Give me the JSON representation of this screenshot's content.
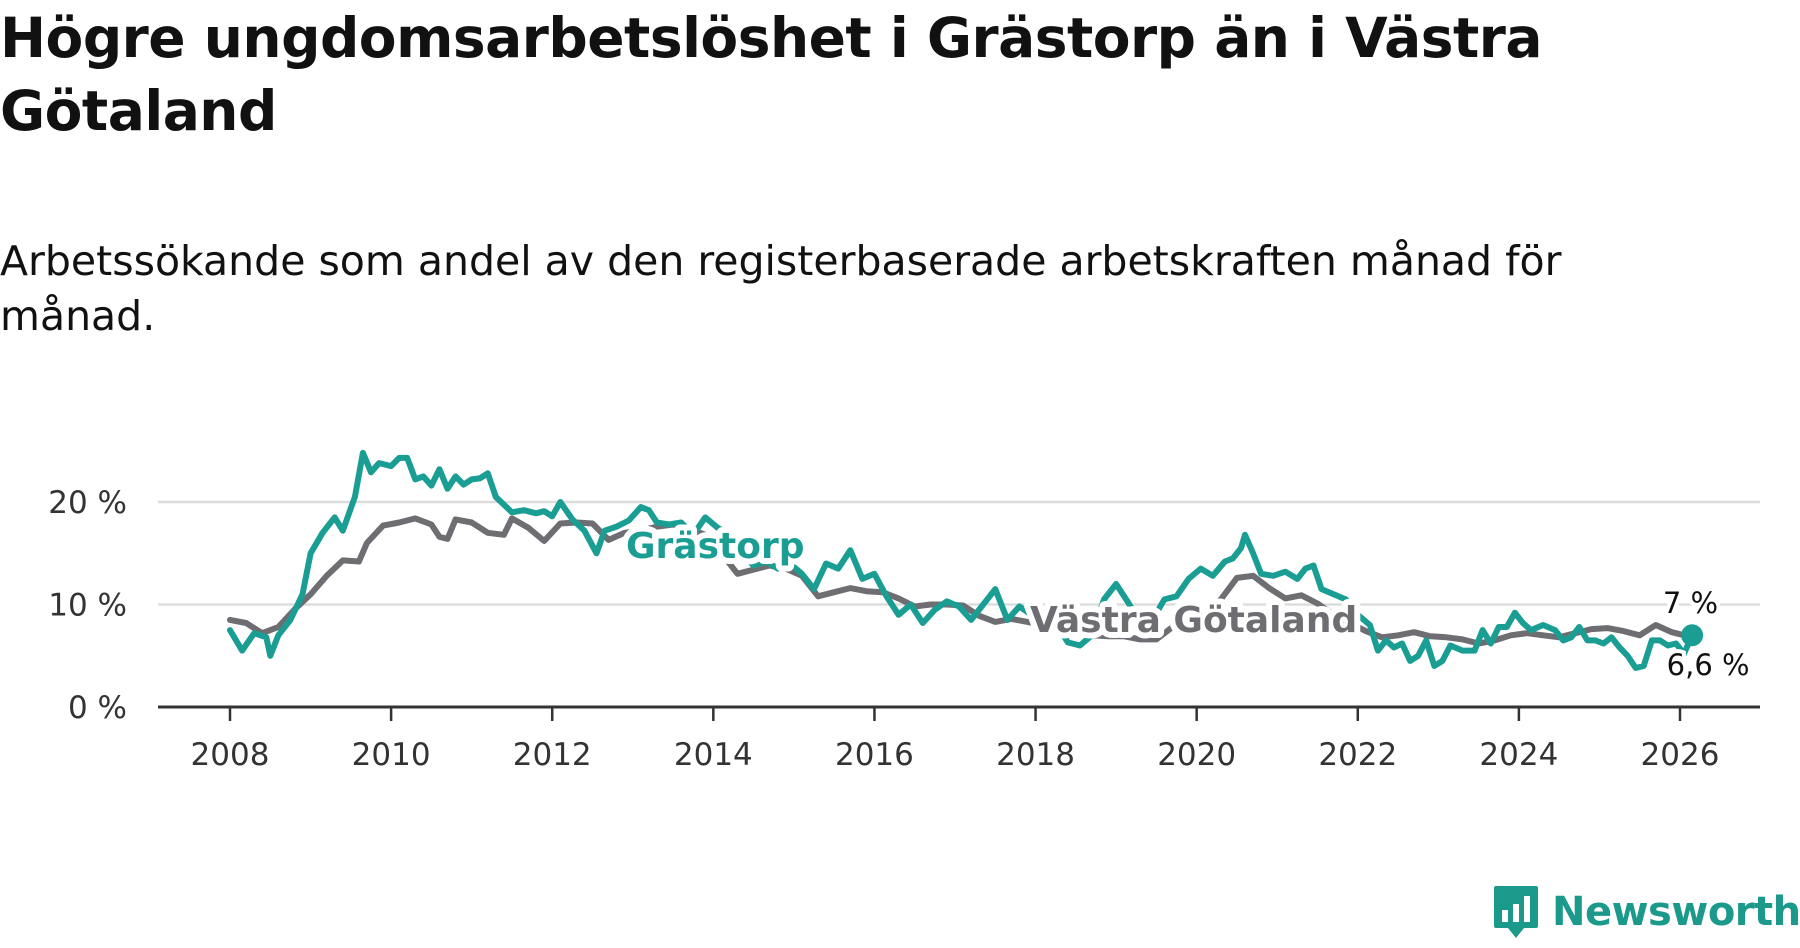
{
  "header": {
    "title": "Högre ungdomsarbetslöshet i Grästorp än i Västra Götaland",
    "subtitle": "Arbetssökande som andel av den registerbaserade arbetskraften månad för månad."
  },
  "brand": {
    "name": "Newsworthy",
    "icon": "newsworthy-logo-icon"
  },
  "colors": {
    "grastorp": "#1a9e94",
    "vastra_gotaland": "#6e6d72",
    "grid": "#dddddd",
    "axis": "#333333",
    "brand": "#1b9a8c"
  },
  "chart_data": {
    "type": "line",
    "title": "Högre ungdomsarbetslöshet i Grästorp än i Västra Götaland",
    "subtitle": "Arbetssökande som andel av den registerbaserade arbetskraften månad för månad.",
    "xlabel": "",
    "ylabel": "",
    "xlim": [
      2007.6,
      2026.8
    ],
    "ylim": [
      0,
      20
    ],
    "grid": true,
    "y_ticks": [
      0,
      10,
      20
    ],
    "y_tick_labels": [
      "0 %",
      "10 %",
      "20 %"
    ],
    "x_ticks": [
      2008,
      2010,
      2012,
      2014,
      2016,
      2018,
      2020,
      2022,
      2024,
      2026
    ],
    "x_tick_labels": [
      "2008",
      "2010",
      "2012",
      "2014",
      "2016",
      "2018",
      "2020",
      "2022",
      "2024",
      "2026"
    ],
    "series": [
      {
        "name": "Västra Götaland",
        "label": "Västra Götaland",
        "end_label": "6,6 %",
        "points": [
          [
            2008.0,
            8.5
          ],
          [
            2008.2,
            8.2
          ],
          [
            2008.4,
            7.2
          ],
          [
            2008.6,
            7.8
          ],
          [
            2008.8,
            9.5
          ],
          [
            2009.0,
            11.0
          ],
          [
            2009.2,
            12.8
          ],
          [
            2009.4,
            14.3
          ],
          [
            2009.6,
            14.2
          ],
          [
            2009.7,
            16.0
          ],
          [
            2009.9,
            17.7
          ],
          [
            2010.1,
            18.0
          ],
          [
            2010.3,
            18.4
          ],
          [
            2010.5,
            17.8
          ],
          [
            2010.6,
            16.6
          ],
          [
            2010.7,
            16.4
          ],
          [
            2010.8,
            18.3
          ],
          [
            2011.0,
            18.0
          ],
          [
            2011.2,
            17.0
          ],
          [
            2011.4,
            16.8
          ],
          [
            2011.5,
            18.4
          ],
          [
            2011.7,
            17.5
          ],
          [
            2011.9,
            16.2
          ],
          [
            2012.1,
            17.9
          ],
          [
            2012.3,
            18.0
          ],
          [
            2012.5,
            17.9
          ],
          [
            2012.7,
            16.3
          ],
          [
            2012.9,
            17.0
          ],
          [
            2013.1,
            17.2
          ],
          [
            2013.3,
            17.6
          ],
          [
            2013.5,
            17.8
          ],
          [
            2013.7,
            17.4
          ],
          [
            2013.9,
            16.8
          ],
          [
            2014.1,
            15.0
          ],
          [
            2014.3,
            13.0
          ],
          [
            2014.5,
            13.4
          ],
          [
            2014.7,
            13.8
          ],
          [
            2014.9,
            13.5
          ],
          [
            2015.1,
            12.8
          ],
          [
            2015.3,
            10.8
          ],
          [
            2015.5,
            11.2
          ],
          [
            2015.7,
            11.6
          ],
          [
            2015.9,
            11.3
          ],
          [
            2016.1,
            11.2
          ],
          [
            2016.3,
            10.6
          ],
          [
            2016.5,
            9.8
          ],
          [
            2016.7,
            10.0
          ],
          [
            2016.9,
            10.0
          ],
          [
            2017.1,
            9.9
          ],
          [
            2017.3,
            8.9
          ],
          [
            2017.5,
            8.3
          ],
          [
            2017.7,
            8.6
          ],
          [
            2017.9,
            8.3
          ],
          [
            2018.1,
            8.0
          ],
          [
            2018.3,
            7.6
          ],
          [
            2018.5,
            7.3
          ],
          [
            2018.7,
            7.0
          ],
          [
            2018.9,
            6.9
          ],
          [
            2019.1,
            6.9
          ],
          [
            2019.3,
            6.6
          ],
          [
            2019.5,
            6.6
          ],
          [
            2019.7,
            7.8
          ],
          [
            2019.9,
            8.6
          ],
          [
            2020.1,
            9.2
          ],
          [
            2020.3,
            10.5
          ],
          [
            2020.5,
            12.6
          ],
          [
            2020.7,
            12.8
          ],
          [
            2020.9,
            11.6
          ],
          [
            2021.1,
            10.6
          ],
          [
            2021.3,
            10.9
          ],
          [
            2021.5,
            10.1
          ],
          [
            2021.7,
            9.0
          ],
          [
            2021.9,
            8.2
          ],
          [
            2022.1,
            7.4
          ],
          [
            2022.3,
            6.8
          ],
          [
            2022.5,
            7.0
          ],
          [
            2022.7,
            7.3
          ],
          [
            2022.9,
            6.9
          ],
          [
            2023.1,
            6.8
          ],
          [
            2023.3,
            6.6
          ],
          [
            2023.5,
            6.2
          ],
          [
            2023.7,
            6.5
          ],
          [
            2023.9,
            7.0
          ],
          [
            2024.1,
            7.2
          ],
          [
            2024.3,
            7.0
          ],
          [
            2024.5,
            6.8
          ],
          [
            2024.7,
            7.2
          ],
          [
            2024.9,
            7.6
          ],
          [
            2025.1,
            7.7
          ],
          [
            2025.3,
            7.4
          ],
          [
            2025.5,
            7.0
          ],
          [
            2025.7,
            8.0
          ],
          [
            2025.9,
            7.3
          ],
          [
            2026.1,
            6.9
          ],
          [
            2026.2,
            6.6
          ]
        ]
      },
      {
        "name": "Grästorp",
        "label": "Grästorp",
        "end_label": "7 %",
        "points": [
          [
            2008.0,
            7.5
          ],
          [
            2008.15,
            5.5
          ],
          [
            2008.3,
            7.2
          ],
          [
            2008.45,
            6.8
          ],
          [
            2008.5,
            5.0
          ],
          [
            2008.6,
            7.0
          ],
          [
            2008.75,
            8.5
          ],
          [
            2008.9,
            11.0
          ],
          [
            2009.0,
            15.0
          ],
          [
            2009.15,
            17.0
          ],
          [
            2009.3,
            18.5
          ],
          [
            2009.4,
            17.2
          ],
          [
            2009.55,
            20.5
          ],
          [
            2009.65,
            24.8
          ],
          [
            2009.75,
            22.9
          ],
          [
            2009.85,
            23.8
          ],
          [
            2010.0,
            23.5
          ],
          [
            2010.1,
            24.3
          ],
          [
            2010.2,
            24.3
          ],
          [
            2010.3,
            22.2
          ],
          [
            2010.4,
            22.5
          ],
          [
            2010.5,
            21.6
          ],
          [
            2010.6,
            23.2
          ],
          [
            2010.7,
            21.3
          ],
          [
            2010.8,
            22.5
          ],
          [
            2010.9,
            21.7
          ],
          [
            2011.0,
            22.2
          ],
          [
            2011.1,
            22.3
          ],
          [
            2011.2,
            22.8
          ],
          [
            2011.3,
            20.5
          ],
          [
            2011.5,
            19.0
          ],
          [
            2011.65,
            19.2
          ],
          [
            2011.8,
            18.9
          ],
          [
            2011.9,
            19.1
          ],
          [
            2012.0,
            18.6
          ],
          [
            2012.1,
            20.0
          ],
          [
            2012.25,
            18.3
          ],
          [
            2012.4,
            17.2
          ],
          [
            2012.55,
            15.0
          ],
          [
            2012.65,
            17.2
          ],
          [
            2012.8,
            17.6
          ],
          [
            2012.95,
            18.2
          ],
          [
            2013.1,
            19.5
          ],
          [
            2013.2,
            19.2
          ],
          [
            2013.3,
            18.0
          ],
          [
            2013.45,
            17.8
          ],
          [
            2013.6,
            18.0
          ],
          [
            2013.75,
            16.8
          ],
          [
            2013.9,
            18.5
          ],
          [
            2014.05,
            17.5
          ],
          [
            2014.2,
            16.8
          ],
          [
            2014.35,
            15.0
          ],
          [
            2014.5,
            13.8
          ],
          [
            2014.65,
            14.2
          ],
          [
            2014.8,
            13.5
          ],
          [
            2014.95,
            14.0
          ],
          [
            2015.1,
            13.0
          ],
          [
            2015.25,
            11.5
          ],
          [
            2015.4,
            14.0
          ],
          [
            2015.55,
            13.5
          ],
          [
            2015.7,
            15.3
          ],
          [
            2015.85,
            12.5
          ],
          [
            2016.0,
            13.0
          ],
          [
            2016.15,
            10.8
          ],
          [
            2016.3,
            9.0
          ],
          [
            2016.45,
            10.0
          ],
          [
            2016.6,
            8.2
          ],
          [
            2016.75,
            9.5
          ],
          [
            2016.9,
            10.3
          ],
          [
            2017.05,
            9.8
          ],
          [
            2017.2,
            8.5
          ],
          [
            2017.35,
            10.0
          ],
          [
            2017.5,
            11.5
          ],
          [
            2017.65,
            8.5
          ],
          [
            2017.8,
            9.8
          ],
          [
            2017.95,
            9.0
          ],
          [
            2018.1,
            7.5
          ],
          [
            2018.25,
            8.2
          ],
          [
            2018.4,
            6.3
          ],
          [
            2018.55,
            6.0
          ],
          [
            2018.7,
            7.0
          ],
          [
            2018.85,
            10.5
          ],
          [
            2019.0,
            12.0
          ],
          [
            2019.15,
            10.2
          ],
          [
            2019.3,
            8.2
          ],
          [
            2019.45,
            8.5
          ],
          [
            2019.6,
            10.5
          ],
          [
            2019.75,
            10.8
          ],
          [
            2019.9,
            12.5
          ],
          [
            2020.05,
            13.5
          ],
          [
            2020.2,
            12.8
          ],
          [
            2020.35,
            14.2
          ],
          [
            2020.45,
            14.5
          ],
          [
            2020.55,
            15.5
          ],
          [
            2020.6,
            16.8
          ],
          [
            2020.7,
            15.0
          ],
          [
            2020.8,
            13.0
          ],
          [
            2020.95,
            12.8
          ],
          [
            2021.1,
            13.2
          ],
          [
            2021.25,
            12.5
          ],
          [
            2021.35,
            13.5
          ],
          [
            2021.45,
            13.8
          ],
          [
            2021.55,
            11.5
          ],
          [
            2021.7,
            11.0
          ],
          [
            2021.85,
            10.5
          ],
          [
            2022.0,
            9.0
          ],
          [
            2022.15,
            8.0
          ],
          [
            2022.25,
            5.5
          ],
          [
            2022.35,
            6.5
          ],
          [
            2022.45,
            5.8
          ],
          [
            2022.55,
            6.2
          ],
          [
            2022.65,
            4.5
          ],
          [
            2022.75,
            5.0
          ],
          [
            2022.85,
            6.5
          ],
          [
            2022.95,
            4.0
          ],
          [
            2023.05,
            4.5
          ],
          [
            2023.15,
            6.0
          ],
          [
            2023.3,
            5.5
          ],
          [
            2023.45,
            5.5
          ],
          [
            2023.55,
            7.5
          ],
          [
            2023.65,
            6.2
          ],
          [
            2023.75,
            7.8
          ],
          [
            2023.85,
            7.8
          ],
          [
            2023.95,
            9.2
          ],
          [
            2024.05,
            8.2
          ],
          [
            2024.15,
            7.5
          ],
          [
            2024.3,
            8.0
          ],
          [
            2024.45,
            7.5
          ],
          [
            2024.55,
            6.5
          ],
          [
            2024.65,
            6.8
          ],
          [
            2024.75,
            7.8
          ],
          [
            2024.85,
            6.5
          ],
          [
            2024.95,
            6.5
          ],
          [
            2025.05,
            6.2
          ],
          [
            2025.15,
            6.8
          ],
          [
            2025.25,
            5.8
          ],
          [
            2025.35,
            5.0
          ],
          [
            2025.45,
            3.8
          ],
          [
            2025.55,
            4.0
          ],
          [
            2025.65,
            6.5
          ],
          [
            2025.75,
            6.5
          ],
          [
            2025.85,
            6.0
          ],
          [
            2025.95,
            6.2
          ],
          [
            2026.05,
            5.2
          ],
          [
            2026.15,
            7.0
          ]
        ]
      }
    ]
  }
}
